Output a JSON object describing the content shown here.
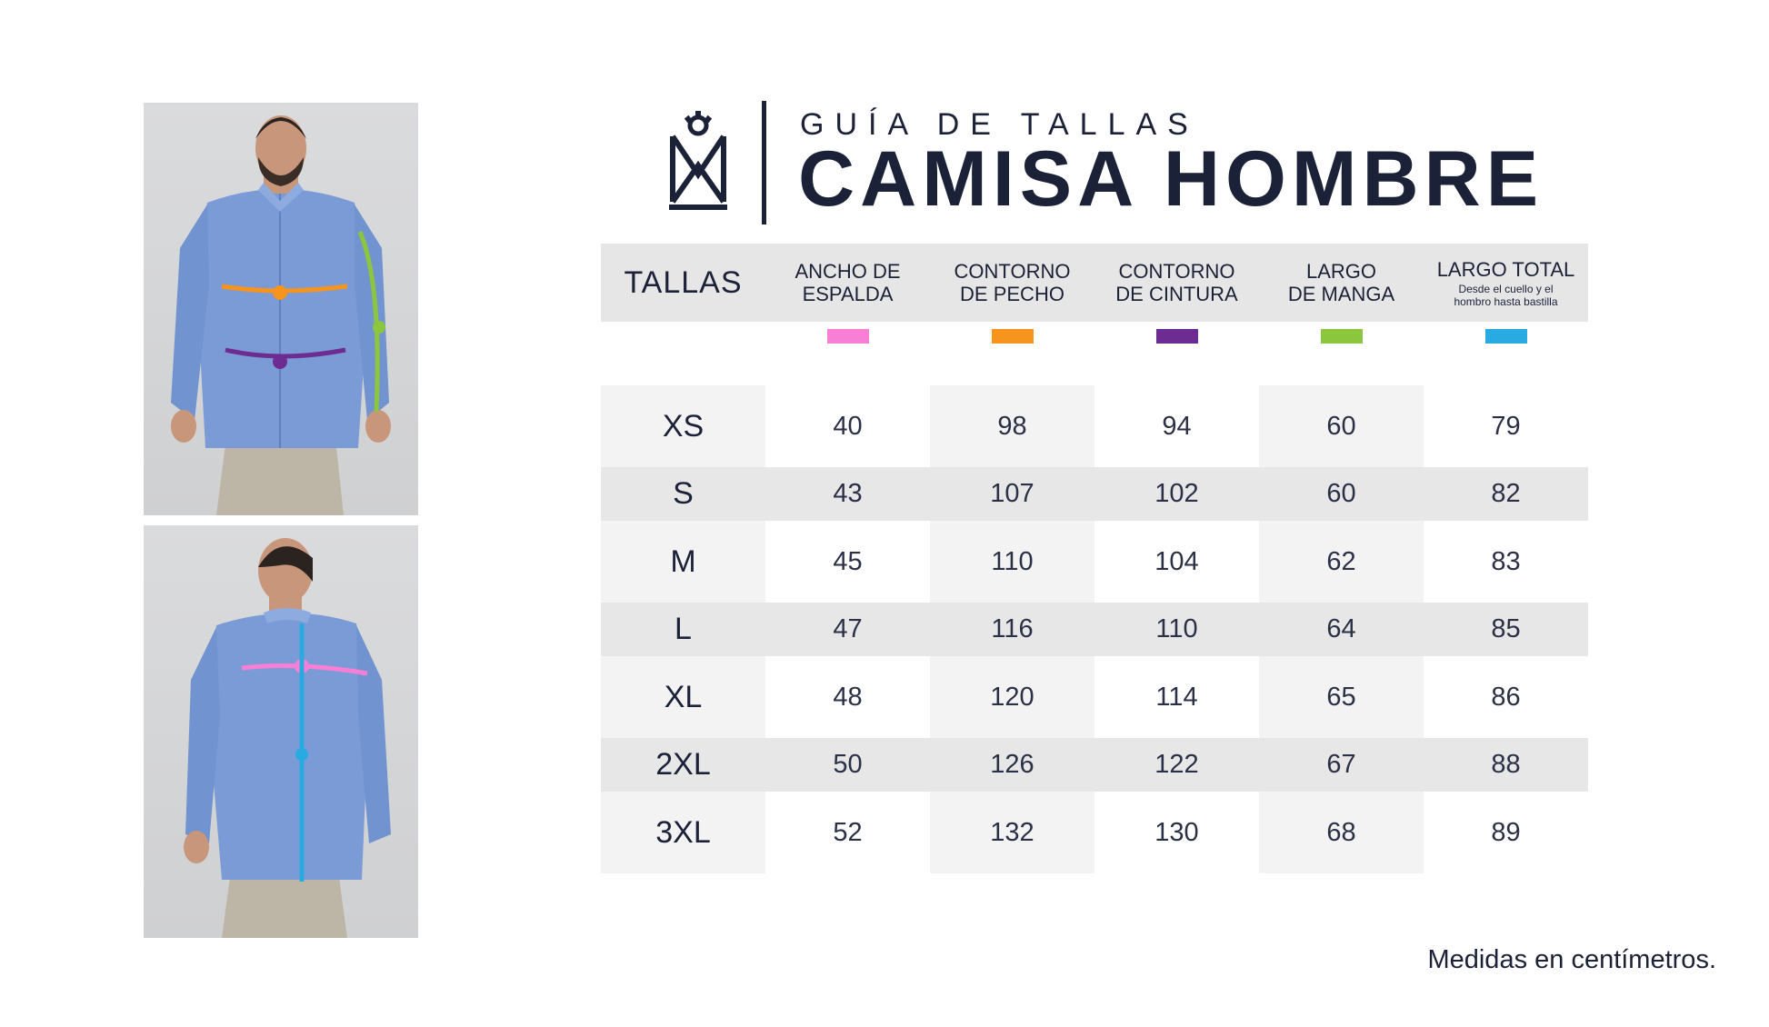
{
  "header": {
    "title_small": "GUÍA DE TALLAS",
    "title_big": "CAMISA HOMBRE"
  },
  "table": {
    "columns": [
      {
        "label_line1": "TALLAS",
        "label_line2": "",
        "sub": ""
      },
      {
        "label_line1": "ANCHO DE",
        "label_line2": "ESPALDA",
        "sub": "",
        "color": "#f87fd6"
      },
      {
        "label_line1": "CONTORNO",
        "label_line2": "DE PECHO",
        "sub": "",
        "color": "#f7941d"
      },
      {
        "label_line1": "CONTORNO",
        "label_line2": "DE CINTURA",
        "sub": "",
        "color": "#6d2c91"
      },
      {
        "label_line1": "LARGO",
        "label_line2": "DE MANGA",
        "sub": "",
        "color": "#8cc63f"
      },
      {
        "label_line1": "LARGO TOTAL",
        "label_line2": "",
        "sub": "Desde el cuello y el hombro hasta bastilla",
        "color": "#29abe2"
      }
    ],
    "rows": [
      {
        "size": "XS",
        "values": [
          "40",
          "98",
          "94",
          "60",
          "79"
        ]
      },
      {
        "size": "S",
        "values": [
          "43",
          "107",
          "102",
          "60",
          "82"
        ]
      },
      {
        "size": "M",
        "values": [
          "45",
          "110",
          "104",
          "62",
          "83"
        ]
      },
      {
        "size": "L",
        "values": [
          "47",
          "116",
          "110",
          "64",
          "85"
        ]
      },
      {
        "size": "XL",
        "values": [
          "48",
          "120",
          "114",
          "65",
          "86"
        ]
      },
      {
        "size": "2XL",
        "values": [
          "50",
          "126",
          "122",
          "67",
          "88"
        ]
      },
      {
        "size": "3XL",
        "values": [
          "52",
          "132",
          "130",
          "68",
          "89"
        ]
      }
    ]
  },
  "footer": {
    "note": "Medidas en centímetros."
  }
}
